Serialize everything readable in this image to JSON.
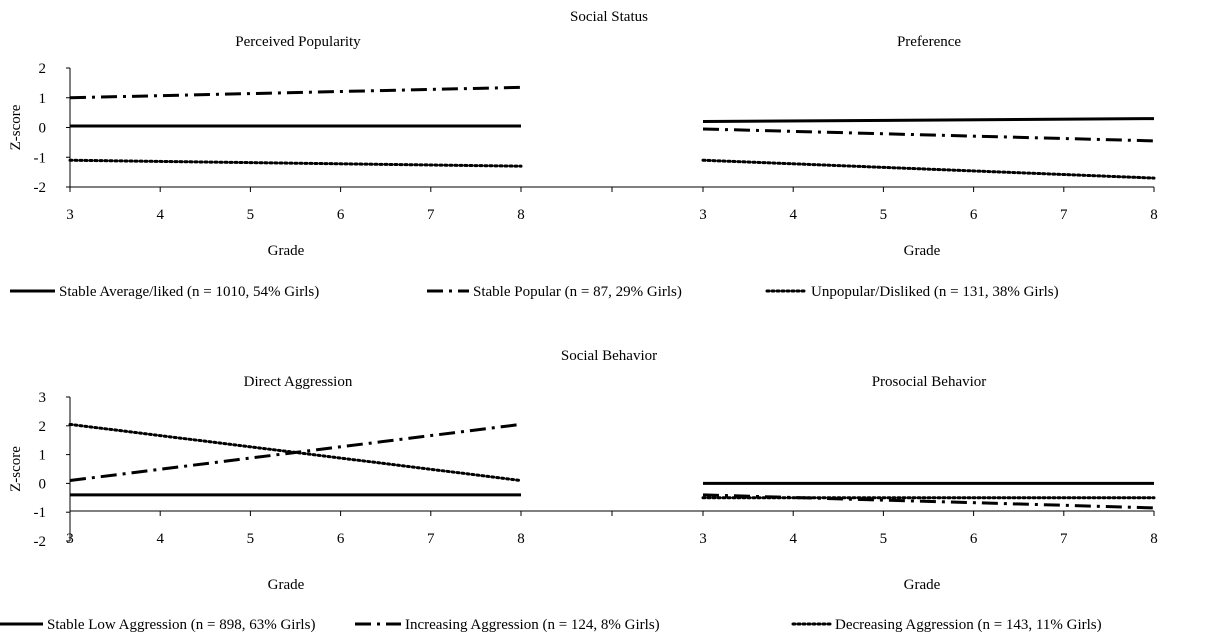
{
  "chart_data": [
    {
      "type": "line",
      "title": "Social Status",
      "ylabel": "Z-score",
      "ylim": [
        -2,
        2
      ],
      "yticks": [
        "2",
        "1",
        "0",
        "-1",
        "-2"
      ],
      "panels": [
        {
          "subtitle": "Perceived Popularity",
          "xlabel": "Grade",
          "x": [
            3,
            8
          ],
          "xticks": [
            "3",
            "4",
            "5",
            "6",
            "7",
            "8"
          ],
          "series": [
            {
              "name": "Stable Average/liked (n = 1010, 54% Girls)",
              "style": "solid",
              "values": [
                0.05,
                0.05
              ]
            },
            {
              "name": "Stable Popular (n = 87, 29% Girls)",
              "style": "dashdot",
              "values": [
                1.0,
                1.35
              ]
            },
            {
              "name": "Unpopular/Disliked (n = 131, 38% Girls)",
              "style": "dotted",
              "values": [
                -1.1,
                -1.3
              ]
            }
          ]
        },
        {
          "subtitle": "Preference",
          "xlabel": "Grade",
          "x": [
            3,
            8
          ],
          "xticks": [
            "3",
            "4",
            "5",
            "6",
            "7",
            "8"
          ],
          "series": [
            {
              "name": "Stable Average/liked (n = 1010, 54% Girls)",
              "style": "solid",
              "values": [
                0.2,
                0.3
              ]
            },
            {
              "name": "Stable Popular (n = 87, 29% Girls)",
              "style": "dashdot",
              "values": [
                -0.05,
                -0.45
              ]
            },
            {
              "name": "Unpopular/Disliked (n = 131, 38% Girls)",
              "style": "dotted",
              "values": [
                -1.1,
                -1.7
              ]
            }
          ]
        }
      ],
      "legend": [
        {
          "label": "Stable Average/liked (n = 1010, 54% Girls)",
          "style": "solid"
        },
        {
          "label": "Stable Popular (n = 87, 29% Girls)",
          "style": "dashdot"
        },
        {
          "label": "Unpopular/Disliked (n = 131, 38% Girls)",
          "style": "dotted"
        }
      ]
    },
    {
      "type": "line",
      "title": "Social Behavior",
      "ylabel": "Z-score",
      "ylim": [
        -2,
        3
      ],
      "yticks": [
        "3",
        "2",
        "1",
        "0",
        "-1",
        "-2"
      ],
      "panels": [
        {
          "subtitle": "Direct  Aggression",
          "xlabel": "Grade",
          "x": [
            3,
            8
          ],
          "xticks": [
            "3",
            "4",
            "5",
            "6",
            "7",
            "8"
          ],
          "series": [
            {
              "name": "Stable Low Aggression (n = 898, 63% Girls)",
              "style": "solid",
              "values": [
                -0.4,
                -0.4
              ]
            },
            {
              "name": "Increasing Aggression (n = 124, 8% Girls)",
              "style": "dashdot",
              "values": [
                0.1,
                2.05
              ]
            },
            {
              "name": "Decreasing Aggression (n = 143, 11% Girls)",
              "style": "dotted",
              "values": [
                2.05,
                0.1
              ]
            }
          ]
        },
        {
          "subtitle": "Prosocial Behavior",
          "xlabel": "Grade",
          "x": [
            3,
            8
          ],
          "xticks": [
            "3",
            "4",
            "5",
            "6",
            "7",
            "8"
          ],
          "series": [
            {
              "name": "Stable Low Aggression (n = 898, 63% Girls)",
              "style": "solid",
              "values": [
                0.0,
                0.0
              ]
            },
            {
              "name": "Increasing Aggression (n = 124, 8% Girls)",
              "style": "dashdot",
              "values": [
                -0.4,
                -0.85
              ]
            },
            {
              "name": "Decreasing Aggression (n = 143, 11% Girls)",
              "style": "dotted",
              "values": [
                -0.5,
                -0.5
              ]
            }
          ]
        }
      ],
      "legend": [
        {
          "label": "Stable Low Aggression (n = 898, 63% Girls)",
          "style": "solid"
        },
        {
          "label": "Increasing Aggression (n = 124, 8% Girls)",
          "style": "dashdot"
        },
        {
          "label": "Decreasing Aggression (n = 143, 11% Girls)",
          "style": "dotted"
        }
      ]
    }
  ]
}
